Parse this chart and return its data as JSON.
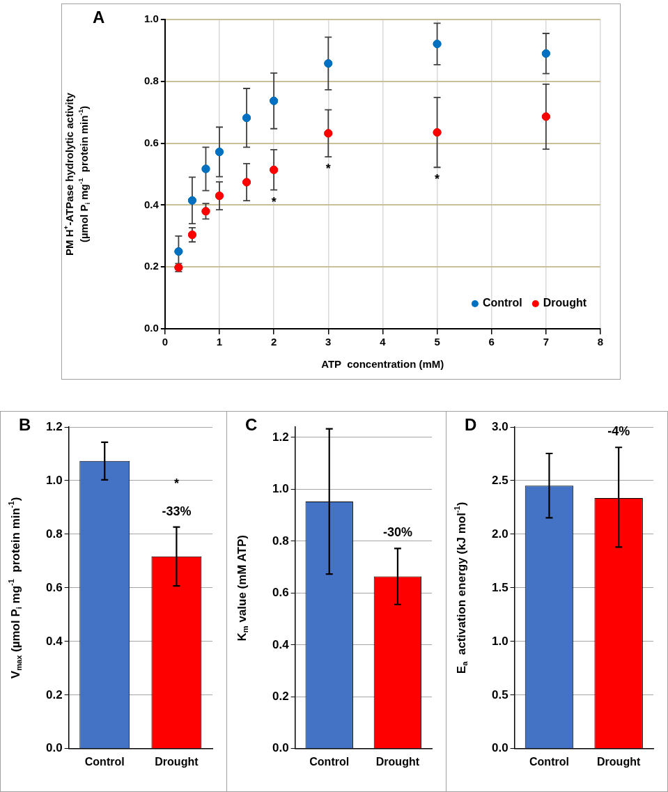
{
  "chart_data": [
    {
      "type": "scatter",
      "title": "A",
      "xlabel": "ATP  concentration (mM)",
      "ylabel": "PM H$^{+}$-ATPase hydrolytic activity\n(µmol P$_{i}$ mg$^{-1}$  protein min$^{-1}$)",
      "x": [
        0.25,
        0.5,
        0.75,
        1,
        1.5,
        2,
        3,
        5,
        7
      ],
      "series": [
        {
          "name": "Control",
          "color": "#0070c0",
          "values": [
            0.25,
            0.415,
            0.517,
            0.572,
            0.682,
            0.737,
            0.858,
            0.921,
            0.89
          ],
          "errors": [
            0.05,
            0.075,
            0.07,
            0.08,
            0.095,
            0.09,
            0.085,
            0.067,
            0.065
          ]
        },
        {
          "name": "Drought",
          "color": "#ff0000",
          "values": [
            0.198,
            0.304,
            0.38,
            0.43,
            0.474,
            0.514,
            0.632,
            0.635,
            0.686
          ],
          "errors": [
            0.013,
            0.023,
            0.025,
            0.045,
            0.06,
            0.065,
            0.076,
            0.113,
            0.105
          ],
          "value_labels": [
            null,
            null,
            null,
            null,
            null,
            "*",
            "*",
            "*",
            null
          ]
        }
      ],
      "xlim": [
        0,
        8
      ],
      "xticks": [
        0,
        1,
        2,
        3,
        4,
        5,
        6,
        7,
        8
      ],
      "ylim": [
        0,
        1
      ],
      "yticks": [
        {
          "value": 0,
          "label": "0.0"
        },
        {
          "value": 0.2,
          "label": "0.2"
        },
        {
          "value": 0.4,
          "label": "0.4"
        },
        {
          "value": 0.6,
          "label": "0.6"
        },
        {
          "value": 0.8,
          "label": "0.8"
        },
        {
          "value": 1,
          "label": "1.0"
        }
      ],
      "grid": true,
      "legend": "bottom right",
      "marker": "circle"
    },
    {
      "type": "bar",
      "title": "B",
      "ylabel": "V$_{max}$ (µmol P$_{i}$ mg$^{-1}$  protein min$^{-1}$)",
      "categories": [
        "Control",
        "Drought"
      ],
      "values": [
        1.073,
        0.717
      ],
      "colors": [
        "#4472c4",
        "#ff0000"
      ],
      "errors": [
        0.07,
        0.11
      ],
      "ylim": [
        0,
        1.2
      ],
      "yticks": [
        {
          "value": 0,
          "label": "0.0"
        },
        {
          "value": 0.2,
          "label": "0.2"
        },
        {
          "value": 0.4,
          "label": "0.4"
        },
        {
          "value": 0.6,
          "label": "0.6"
        },
        {
          "value": 0.8,
          "label": "0.8"
        },
        {
          "value": 1,
          "label": "1.0"
        },
        {
          "value": 1.2,
          "label": "1.2"
        }
      ],
      "grid": "y",
      "annotations": [
        "*",
        "-33%"
      ]
    },
    {
      "type": "bar",
      "title": "C",
      "ylabel": "K$_{m}$ value (mM ATP)",
      "categories": [
        "Control",
        "Drought"
      ],
      "values": [
        0.953,
        0.664
      ],
      "colors": [
        "#4472c4",
        "#ff0000"
      ],
      "errors": [
        0.28,
        0.108
      ],
      "ylim": [
        0,
        1.24
      ],
      "yticks": [
        {
          "value": 0,
          "label": "0.0"
        },
        {
          "value": 0.2,
          "label": "0.2"
        },
        {
          "value": 0.4,
          "label": "0.4"
        },
        {
          "value": 0.6,
          "label": "0.6"
        },
        {
          "value": 0.8,
          "label": "0.8"
        },
        {
          "value": 1,
          "label": "1.0"
        },
        {
          "value": 1.2,
          "label": "1.2"
        }
      ],
      "grid": "y",
      "annotations": [
        "-30%"
      ]
    },
    {
      "type": "bar",
      "title": "D",
      "ylabel": "E$_{a}$  activation energy (kJ mol$^{-1}$)",
      "categories": [
        "Control",
        "Drought"
      ],
      "values": [
        2.453,
        2.338
      ],
      "colors": [
        "#4472c4",
        "#ff0000"
      ],
      "errors": [
        0.3,
        [
          1.88,
          2.81
        ]
      ],
      "ylim": [
        0,
        3
      ],
      "yticks": [
        {
          "value": 0,
          "label": "0.0"
        },
        {
          "value": 0.5,
          "label": "0.5"
        },
        {
          "value": 1,
          "label": "1.0"
        },
        {
          "value": 1.5,
          "label": "1.5"
        },
        {
          "value": 2,
          "label": "2.0"
        },
        {
          "value": 2.5,
          "label": "2.5"
        },
        {
          "value": 3,
          "label": "3.0"
        }
      ],
      "grid": "y",
      "annotations": [
        "-4%"
      ]
    }
  ]
}
